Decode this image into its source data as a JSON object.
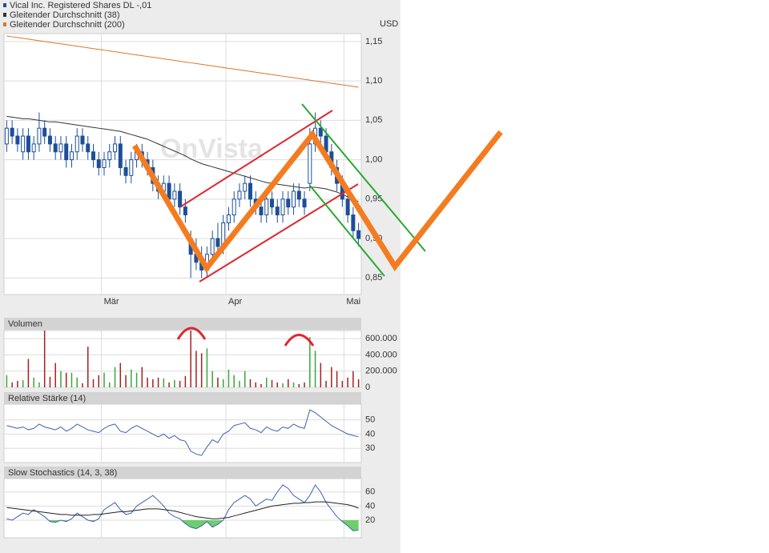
{
  "chart_data": [
    {
      "type": "candlestick",
      "unit": "USD",
      "watermark": "OnVista",
      "xlim": [
        -0.5,
        65.5
      ],
      "xticks": [
        {
          "value": 17.5,
          "label": "Mär"
        },
        {
          "value": 40.5,
          "label": "Apr"
        },
        {
          "value": 62.3,
          "label": "Mai"
        }
      ],
      "ylim": [
        0.829,
        1.16
      ],
      "yticks": [
        {
          "value": 0.85,
          "label": "0,85"
        },
        {
          "value": 0.9,
          "label": "0,90"
        },
        {
          "value": 0.95,
          "label": "0,95"
        },
        {
          "value": 1.0,
          "label": "1,00"
        },
        {
          "value": 1.05,
          "label": "1,05"
        },
        {
          "value": 1.1,
          "label": "1,10"
        },
        {
          "value": 1.15,
          "label": "1,15"
        }
      ],
      "grid": true,
      "series": [
        {
          "name": "Vical Inc. Registered Shares DL -,01",
          "color": "#1d4f97",
          "open": [
            1.02,
            1.04,
            1.03,
            1.01,
            1.03,
            1.01,
            1.02,
            1.04,
            1.03,
            1.02,
            1.01,
            1.02,
            1.0,
            1.01,
            1.03,
            1.02,
            1.01,
            1.0,
            0.99,
            1.0,
            1.01,
            1.02,
            0.99,
            0.98,
            1.0,
            1.01,
            1.0,
            0.99,
            0.97,
            0.96,
            0.97,
            0.95,
            0.96,
            0.94,
            0.9,
            0.88,
            0.87,
            0.86,
            0.88,
            0.9,
            0.89,
            0.92,
            0.93,
            0.95,
            0.96,
            0.97,
            0.95,
            0.94,
            0.93,
            0.95,
            0.94,
            0.93,
            0.95,
            0.94,
            0.96,
            0.95,
            0.97,
            1.02,
            1.04,
            1.03,
            1.01,
            0.99,
            0.97,
            0.95,
            0.93,
            0.91
          ],
          "high": [
            1.05,
            1.05,
            1.04,
            1.04,
            1.04,
            1.03,
            1.06,
            1.05,
            1.04,
            1.03,
            1.03,
            1.03,
            1.02,
            1.04,
            1.04,
            1.03,
            1.02,
            1.01,
            1.01,
            1.02,
            1.03,
            1.03,
            1.0,
            1.01,
            1.02,
            1.02,
            1.01,
            1.0,
            0.98,
            0.98,
            0.98,
            0.97,
            0.97,
            0.95,
            0.91,
            0.9,
            0.89,
            0.89,
            0.91,
            0.92,
            0.93,
            0.94,
            0.96,
            0.97,
            0.98,
            0.98,
            0.96,
            0.95,
            0.96,
            0.96,
            0.95,
            0.96,
            0.96,
            0.97,
            0.97,
            0.96,
            1.04,
            1.06,
            1.05,
            1.04,
            1.02,
            1.0,
            0.98,
            0.96,
            0.94,
            0.92
          ],
          "low": [
            1.01,
            1.02,
            1.01,
            1.0,
            1.0,
            1.0,
            1.01,
            1.02,
            1.01,
            1.0,
            1.0,
            0.99,
            0.99,
            1.0,
            1.01,
            1.0,
            0.99,
            0.98,
            0.98,
            0.99,
            1.0,
            0.98,
            0.97,
            0.97,
            0.99,
            0.99,
            0.98,
            0.96,
            0.95,
            0.95,
            0.94,
            0.94,
            0.93,
            0.92,
            0.85,
            0.86,
            0.85,
            0.85,
            0.87,
            0.88,
            0.88,
            0.91,
            0.92,
            0.94,
            0.95,
            0.94,
            0.93,
            0.92,
            0.92,
            0.93,
            0.92,
            0.92,
            0.93,
            0.93,
            0.94,
            0.93,
            0.96,
            1.01,
            1.02,
            1.0,
            0.98,
            0.96,
            0.94,
            0.92,
            0.9,
            0.89
          ],
          "close": [
            1.04,
            1.03,
            1.02,
            1.03,
            1.01,
            1.02,
            1.04,
            1.03,
            1.02,
            1.01,
            1.02,
            1.0,
            1.01,
            1.03,
            1.02,
            1.01,
            1.0,
            0.99,
            1.0,
            1.01,
            1.02,
            0.99,
            0.98,
            1.0,
            1.01,
            1.0,
            0.99,
            0.97,
            0.96,
            0.97,
            0.95,
            0.96,
            0.94,
            0.93,
            0.88,
            0.87,
            0.86,
            0.88,
            0.9,
            0.89,
            0.92,
            0.93,
            0.95,
            0.96,
            0.97,
            0.95,
            0.94,
            0.93,
            0.95,
            0.94,
            0.93,
            0.95,
            0.94,
            0.96,
            0.95,
            0.94,
            1.02,
            1.04,
            1.03,
            1.01,
            0.99,
            0.97,
            0.95,
            0.93,
            0.91,
            0.9
          ]
        },
        {
          "name": "Gleitender Durchschnitt (38)",
          "color": "#333333",
          "values": [
            1.055,
            1.054,
            1.053,
            1.052,
            1.052,
            1.051,
            1.05,
            1.049,
            1.048,
            1.048,
            1.047,
            1.046,
            1.045,
            1.044,
            1.043,
            1.042,
            1.041,
            1.04,
            1.039,
            1.038,
            1.037,
            1.036,
            1.034,
            1.032,
            1.03,
            1.028,
            1.026,
            1.023,
            1.02,
            1.017,
            1.014,
            1.011,
            1.008,
            1.005,
            1.001,
            0.998,
            0.995,
            0.993,
            0.991,
            0.989,
            0.987,
            0.985,
            0.983,
            0.981,
            0.979,
            0.977,
            0.975,
            0.973,
            0.971,
            0.97,
            0.969,
            0.968,
            0.967,
            0.966,
            0.965,
            0.964,
            0.965,
            0.965,
            0.964,
            0.963,
            0.961,
            0.959,
            0.956,
            0.953,
            0.95,
            0.947
          ]
        },
        {
          "name": "Gleitender Durchschnitt (200)",
          "color": "#d9782d",
          "values": [
            1.157,
            1.156,
            1.155,
            1.154,
            1.153,
            1.152,
            1.151,
            1.15,
            1.149,
            1.148,
            1.147,
            1.146,
            1.145,
            1.144,
            1.143,
            1.142,
            1.141,
            1.14,
            1.139,
            1.138,
            1.137,
            1.136,
            1.135,
            1.134,
            1.133,
            1.132,
            1.131,
            1.13,
            1.129,
            1.128,
            1.127,
            1.126,
            1.125,
            1.124,
            1.123,
            1.122,
            1.121,
            1.12,
            1.119,
            1.118,
            1.117,
            1.116,
            1.115,
            1.114,
            1.113,
            1.112,
            1.111,
            1.11,
            1.109,
            1.108,
            1.107,
            1.106,
            1.105,
            1.104,
            1.103,
            1.102,
            1.101,
            1.1,
            1.099,
            1.098,
            1.097,
            1.096,
            1.095,
            1.094,
            1.093,
            1.092
          ]
        }
      ]
    },
    {
      "type": "bar",
      "title": "Volumen",
      "up_color": "#3aa63a",
      "down_color": "#a52020",
      "ylim": [
        0,
        700000
      ],
      "yticks": [
        0,
        {
          "value": 200000,
          "label": "200.000"
        },
        {
          "value": 400000,
          "label": "400.000"
        },
        {
          "value": 600000,
          "label": "600.000"
        }
      ],
      "grid": true,
      "values": [
        150000,
        60000,
        80000,
        90000,
        350000,
        120000,
        60000,
        700000,
        130000,
        300000,
        200000,
        180000,
        180000,
        120000,
        50000,
        500000,
        100000,
        150000,
        180000,
        60000,
        250000,
        300000,
        150000,
        220000,
        180000,
        250000,
        120000,
        100000,
        120000,
        110000,
        60000,
        90000,
        80000,
        140000,
        700000,
        450000,
        420000,
        480000,
        200000,
        120000,
        100000,
        220000,
        150000,
        80000,
        200000,
        100000,
        60000,
        40000,
        120000,
        90000,
        60000,
        50000,
        100000,
        60000,
        40000,
        60000,
        620000,
        450000,
        300000,
        80000,
        250000,
        200000,
        80000,
        120000,
        200000,
        100000
      ]
    },
    {
      "type": "line",
      "title": "Relative Stärke (14)",
      "ylim": [
        20,
        61
      ],
      "yticks": [
        30,
        40,
        50
      ],
      "grid": true,
      "series": [
        {
          "color": "#3b62ad",
          "values": [
            46,
            45,
            44,
            45,
            43,
            44,
            47,
            45,
            44,
            43,
            45,
            42,
            44,
            47,
            45,
            43,
            42,
            41,
            44,
            46,
            47,
            42,
            41,
            44,
            46,
            44,
            42,
            40,
            38,
            40,
            37,
            39,
            36,
            35,
            28,
            26,
            25,
            31,
            36,
            34,
            40,
            42,
            46,
            47,
            48,
            44,
            43,
            41,
            45,
            43,
            42,
            45,
            44,
            47,
            45,
            44,
            57,
            55,
            52,
            49,
            46,
            44,
            42,
            40,
            39,
            38
          ]
        }
      ]
    },
    {
      "type": "line",
      "title": "Slow Stochastics (14, 3, 38)",
      "ylim": [
        -5,
        79
      ],
      "yticks": [
        20,
        40,
        60
      ],
      "grid": true,
      "fill_below": 20,
      "fill_color": "#6ccf6c",
      "series": [
        {
          "color": "#3b62ad",
          "values": [
            22,
            20,
            25,
            30,
            28,
            35,
            30,
            25,
            18,
            17,
            20,
            18,
            22,
            30,
            25,
            20,
            18,
            22,
            35,
            40,
            45,
            35,
            28,
            30,
            40,
            45,
            50,
            55,
            48,
            40,
            30,
            25,
            22,
            15,
            10,
            8,
            12,
            18,
            10,
            14,
            20,
            35,
            45,
            50,
            55,
            50,
            40,
            45,
            50,
            48,
            60,
            70,
            65,
            55,
            50,
            45,
            55,
            70,
            60,
            45,
            35,
            25,
            18,
            12,
            5,
            6
          ]
        },
        {
          "color": "#222222",
          "values": [
            38,
            37,
            36,
            35,
            34,
            33,
            32,
            31,
            30,
            29,
            28,
            28,
            27,
            27,
            27,
            27,
            28,
            28,
            29,
            30,
            31,
            32,
            32,
            33,
            34,
            35,
            36,
            36,
            36,
            35,
            34,
            33,
            31,
            29,
            27,
            25,
            24,
            23,
            22,
            22,
            23,
            24,
            26,
            28,
            30,
            32,
            34,
            36,
            38,
            40,
            41,
            42,
            43,
            44,
            44,
            45,
            45,
            46,
            46,
            46,
            45,
            44,
            43,
            42,
            40,
            37
          ]
        }
      ]
    }
  ]
}
